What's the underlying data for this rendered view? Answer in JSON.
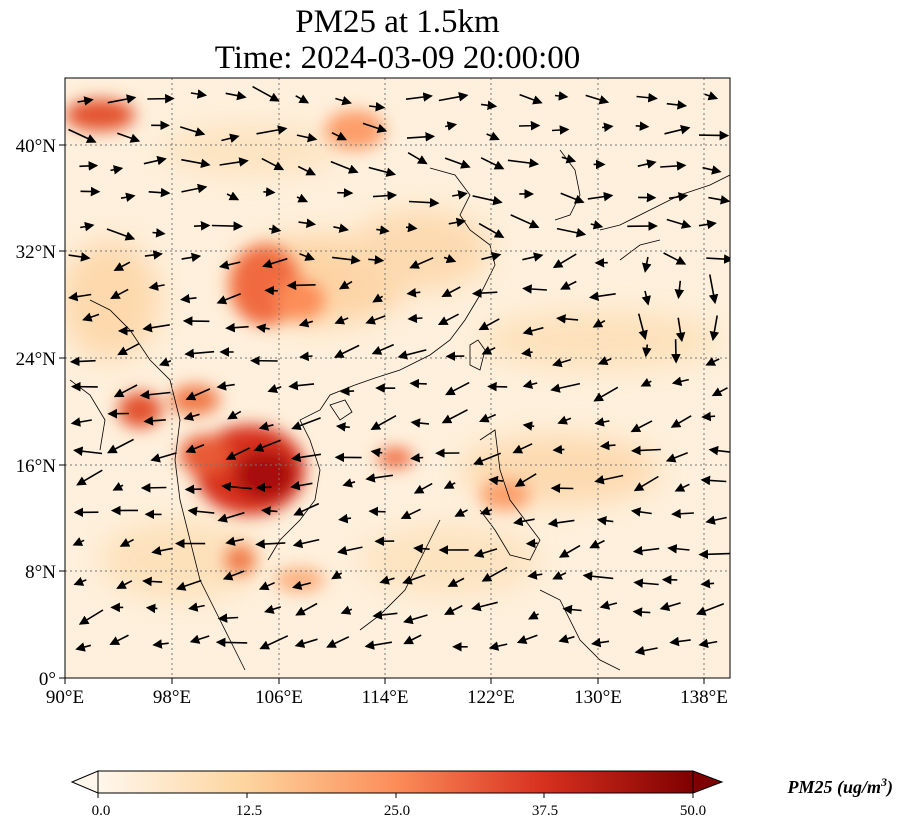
{
  "title": {
    "line1": "PM25 at 1.5km",
    "line2": "Time: 2024-03-09 20:00:00"
  },
  "map": {
    "extent": {
      "lon": [
        90,
        140
      ],
      "lat": [
        0,
        45
      ]
    },
    "lon_ticks": [
      "90°E",
      "98°E",
      "106°E",
      "114°E",
      "122°E",
      "130°E",
      "138°E"
    ],
    "lat_ticks": [
      "0°",
      "8°N",
      "16°N",
      "24°N",
      "32°N",
      "40°N"
    ],
    "gridlines": "dotted",
    "field": "PM25",
    "vectors": "wind arrows"
  },
  "colorbar": {
    "colormap": "OrRd",
    "range": [
      0.0,
      50.0
    ],
    "tick_labels": [
      "0.0",
      "12.5",
      "25.0",
      "37.5",
      "50.0"
    ],
    "label": "PM25 (ug/m^3)",
    "extend": "both",
    "colors": [
      "#fff7ec",
      "#fdd49e",
      "#fc8d59",
      "#d7301f",
      "#7f0000"
    ]
  }
}
